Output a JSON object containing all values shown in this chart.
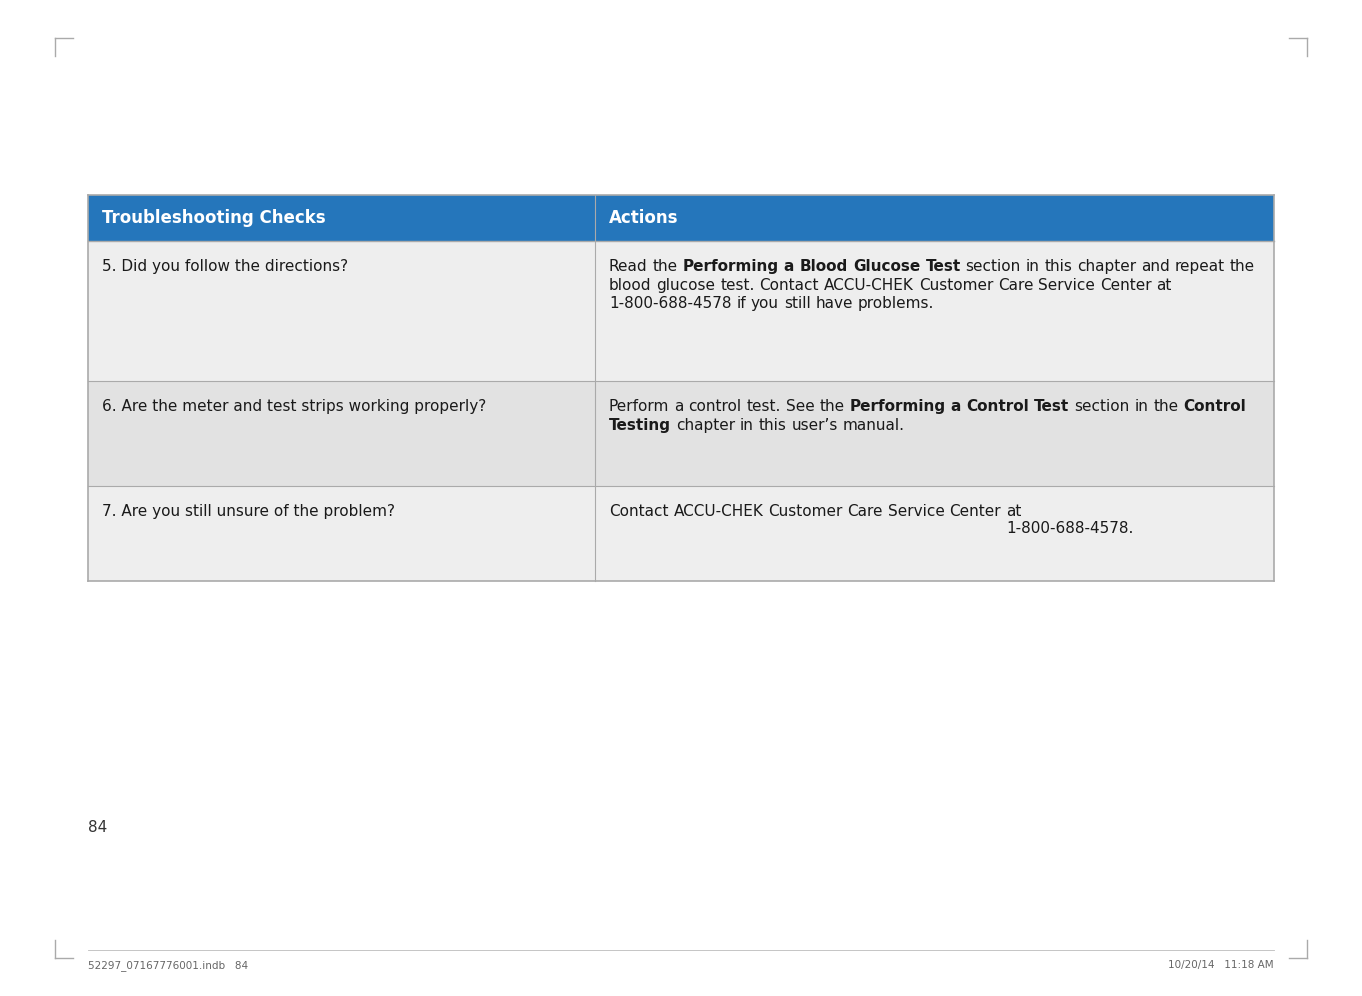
{
  "bg_color": "#ffffff",
  "header_bg_color": "#2576BB",
  "header_text_color": "#ffffff",
  "row1_bg": "#eeeeee",
  "row2_bg": "#e2e2e2",
  "row3_bg": "#eeeeee",
  "cell_text_color": "#1a1a1a",
  "border_color": "#aaaaaa",
  "header": [
    "Troubleshooting Checks",
    "Actions"
  ],
  "rows": [
    {
      "col1": "5. Did you follow the directions?",
      "col2_parts": [
        {
          "text": "Read the ",
          "bold": false
        },
        {
          "text": "Performing a Blood Glucose Test",
          "bold": true
        },
        {
          "text": " section in this chapter and repeat the blood glucose test. Contact ACCU-CHEK Customer Care Service Center at 1-800-688-4578 if you still have problems.",
          "bold": false
        }
      ]
    },
    {
      "col1": "6. Are the meter and test strips working properly?",
      "col2_parts": [
        {
          "text": "Perform a control test. See the ",
          "bold": false
        },
        {
          "text": "Performing a Control Test",
          "bold": true
        },
        {
          "text": " section in the ",
          "bold": false
        },
        {
          "text": "Control Testing",
          "bold": true
        },
        {
          "text": " chapter in this user’s manual.",
          "bold": false
        }
      ]
    },
    {
      "col1": "7. Are you still unsure of the problem?",
      "col2_parts": [
        {
          "text": "Contact ACCU-CHEK Customer Care Service Center at\n1-800-688-4578.",
          "bold": false
        }
      ]
    }
  ],
  "footer_page": "84",
  "footer_left": "52297_07167776001.indb   84",
  "footer_right": "10/20/14   11:18 AM",
  "corner_color": "#aaaaaa"
}
